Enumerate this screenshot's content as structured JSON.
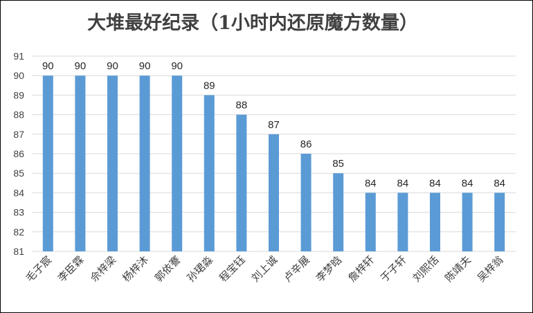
{
  "chart_data": {
    "type": "bar",
    "title": "大堆最好纪录（1小时内还原魔方数量）",
    "xlabel": "",
    "ylabel": "",
    "categories": [
      "毛子宸",
      "李臣霖",
      "佘梓梁",
      "杨梓沐",
      "郭依謇",
      "孙珺淼",
      "程宝钰",
      "刘上诚",
      "卢辛展",
      "李梦晗",
      "詹梓轩",
      "于子轩",
      "刘熙恬",
      "陈靖夫",
      "吴梓翁"
    ],
    "values": [
      90,
      90,
      90,
      90,
      90,
      89,
      88,
      87,
      86,
      85,
      84,
      84,
      84,
      84,
      84
    ],
    "ylim": [
      81,
      91
    ],
    "yticks": [
      81,
      82,
      83,
      84,
      85,
      86,
      87,
      88,
      89,
      90,
      91
    ],
    "grid": true,
    "legend": "none",
    "bar_color": "#5b9bd5",
    "data_labels": true
  }
}
